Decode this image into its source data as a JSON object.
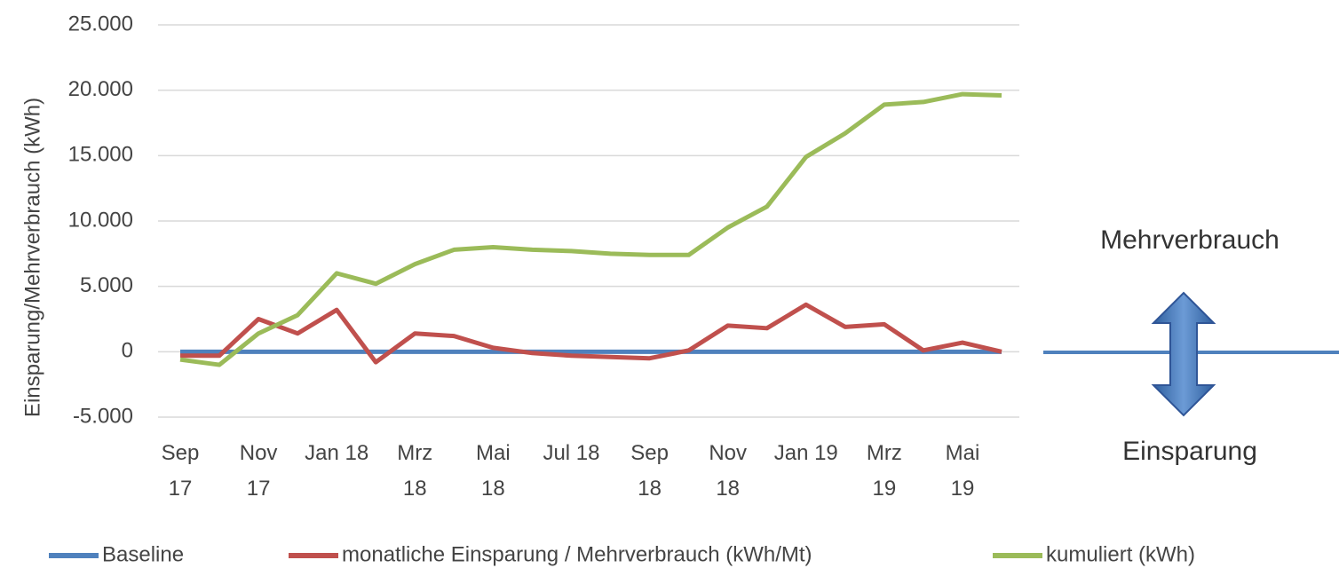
{
  "chart_data": {
    "type": "line",
    "y_label": "Einsparung/Mehrverbrauch (kWh)",
    "categories": [
      "Sep\n17",
      null,
      "Nov\n17",
      null,
      "Jan 18",
      null,
      "Mrz\n18",
      null,
      "Mai\n18",
      null,
      "Jul 18",
      null,
      "Sep\n18",
      null,
      "Nov\n18",
      null,
      "Jan 19",
      null,
      "Mrz\n19",
      null,
      "Mai\n19",
      null
    ],
    "series": [
      {
        "name": "Baseline",
        "color": "#4f81bd",
        "values": [
          0,
          0,
          0,
          0,
          0,
          0,
          0,
          0,
          0,
          0,
          0,
          0,
          0,
          0,
          0,
          0,
          0,
          0,
          0,
          0,
          0,
          0
        ]
      },
      {
        "name": "monatliche Einsparung / Mehrverbrauch (kWh/Mt)",
        "color": "#c0504d",
        "values": [
          -300,
          -300,
          2500,
          1400,
          3200,
          -800,
          1400,
          1200,
          300,
          -100,
          -300,
          -400,
          -500,
          100,
          2000,
          1800,
          3600,
          1900,
          2100,
          100,
          700,
          0
        ]
      },
      {
        "name": "kumuliert (kWh)",
        "color": "#9bbb59",
        "values": [
          -600,
          -1000,
          1400,
          2800,
          6000,
          5200,
          6700,
          7800,
          8000,
          7800,
          7700,
          7500,
          7400,
          7400,
          9500,
          11100,
          14900,
          16700,
          18900,
          19100,
          19700,
          19600
        ]
      }
    ],
    "ylim": [
      -5000,
      25000
    ],
    "yticks": [
      {
        "value": -5000,
        "label": "-5.000"
      },
      0,
      {
        "value": 5000,
        "label": "5.000"
      },
      {
        "value": 10000,
        "label": "10.000"
      },
      {
        "value": 15000,
        "label": "15.000"
      },
      {
        "value": 20000,
        "label": "20.000"
      },
      {
        "value": 25000,
        "label": "25.000"
      }
    ],
    "grid": true,
    "annotations": [
      "Mehrverbrauch",
      "Einsparung"
    ]
  }
}
